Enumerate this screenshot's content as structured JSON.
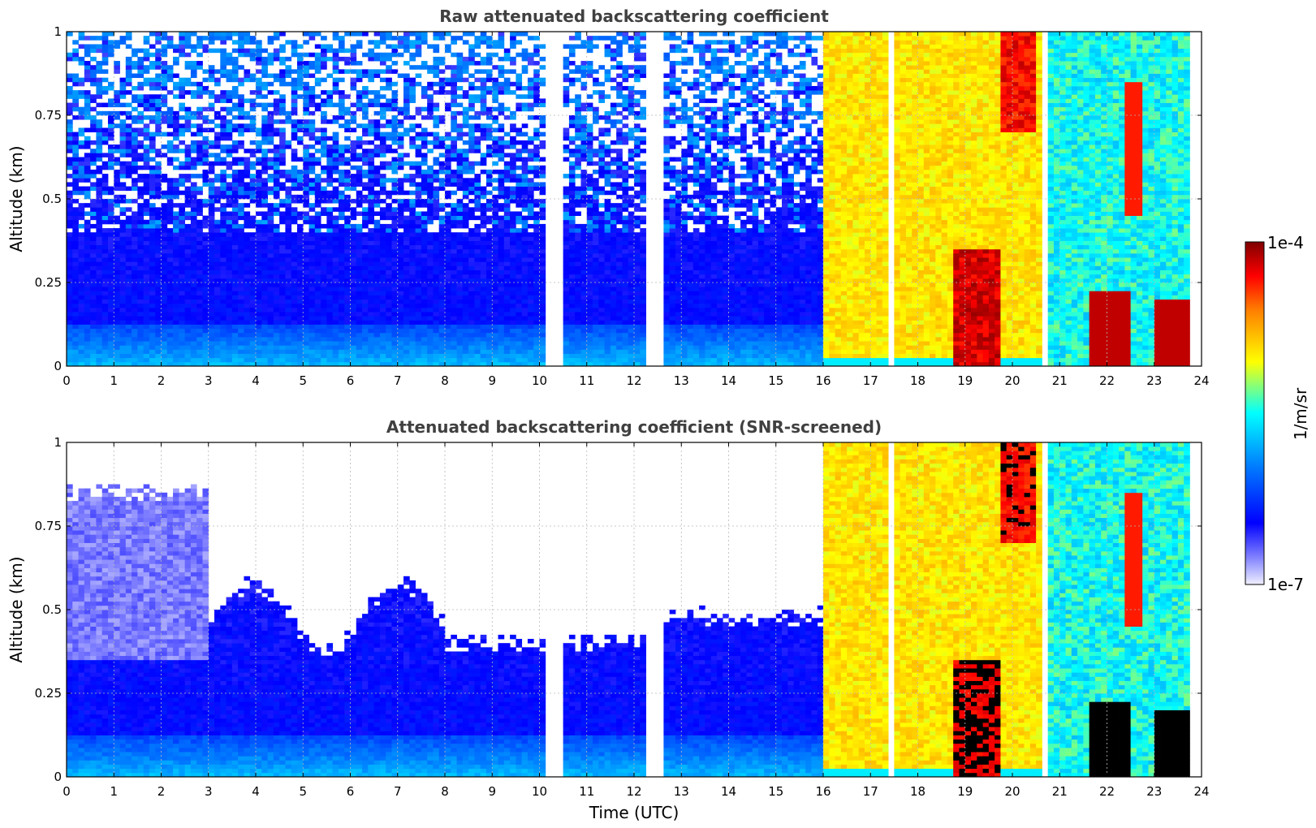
{
  "chart_data": [
    {
      "type": "heatmap",
      "id": "raw",
      "title": "Raw attenuated backscattering coefficient",
      "xlabel": "",
      "ylabel": "Altitude (km)",
      "xlim": [
        0,
        24
      ],
      "ylim": [
        0,
        1
      ],
      "x_ticks": [
        "0",
        "1",
        "2",
        "3",
        "4",
        "5",
        "6",
        "7",
        "8",
        "9",
        "10",
        "11",
        "12",
        "13",
        "14",
        "15",
        "16",
        "17",
        "18",
        "19",
        "20",
        "21",
        "22",
        "23",
        "24"
      ],
      "y_ticks": [
        "0",
        "0.25",
        "0.5",
        "0.75",
        "1"
      ],
      "grid": true,
      "data_gaps_utc": [
        [
          10.15,
          10.55
        ],
        [
          12.25,
          12.6
        ],
        [
          17.4,
          17.5
        ],
        [
          20.6,
          20.75
        ]
      ],
      "colormap": [
        "#f0f0ff",
        "#0000ff",
        "#00ffff",
        "#ffff00",
        "#ff0000",
        "#800000"
      ]
    },
    {
      "type": "heatmap",
      "id": "screened",
      "title": "Attenuated backscattering coefficient (SNR-screened)",
      "xlabel": "Time (UTC)",
      "ylabel": "Altitude (km)",
      "xlim": [
        0,
        24
      ],
      "ylim": [
        0,
        1
      ],
      "x_ticks": [
        "0",
        "1",
        "2",
        "3",
        "4",
        "5",
        "6",
        "7",
        "8",
        "9",
        "10",
        "11",
        "12",
        "13",
        "14",
        "15",
        "16",
        "17",
        "18",
        "19",
        "20",
        "21",
        "22",
        "23",
        "24"
      ],
      "y_ticks": [
        "0",
        "0.25",
        "0.5",
        "0.75",
        "1"
      ],
      "grid": true,
      "data_gaps_utc": [
        [
          10.15,
          10.55
        ],
        [
          12.25,
          12.6
        ],
        [
          17.4,
          17.5
        ],
        [
          20.6,
          20.75
        ]
      ],
      "colormap": [
        "#f0f0ff",
        "#0000ff",
        "#00ffff",
        "#ffff00",
        "#ff0000",
        "#800000"
      ]
    }
  ],
  "colorbar": {
    "label": "1/m/sr",
    "min_label": "1e-7",
    "max_label": "1e-4"
  }
}
